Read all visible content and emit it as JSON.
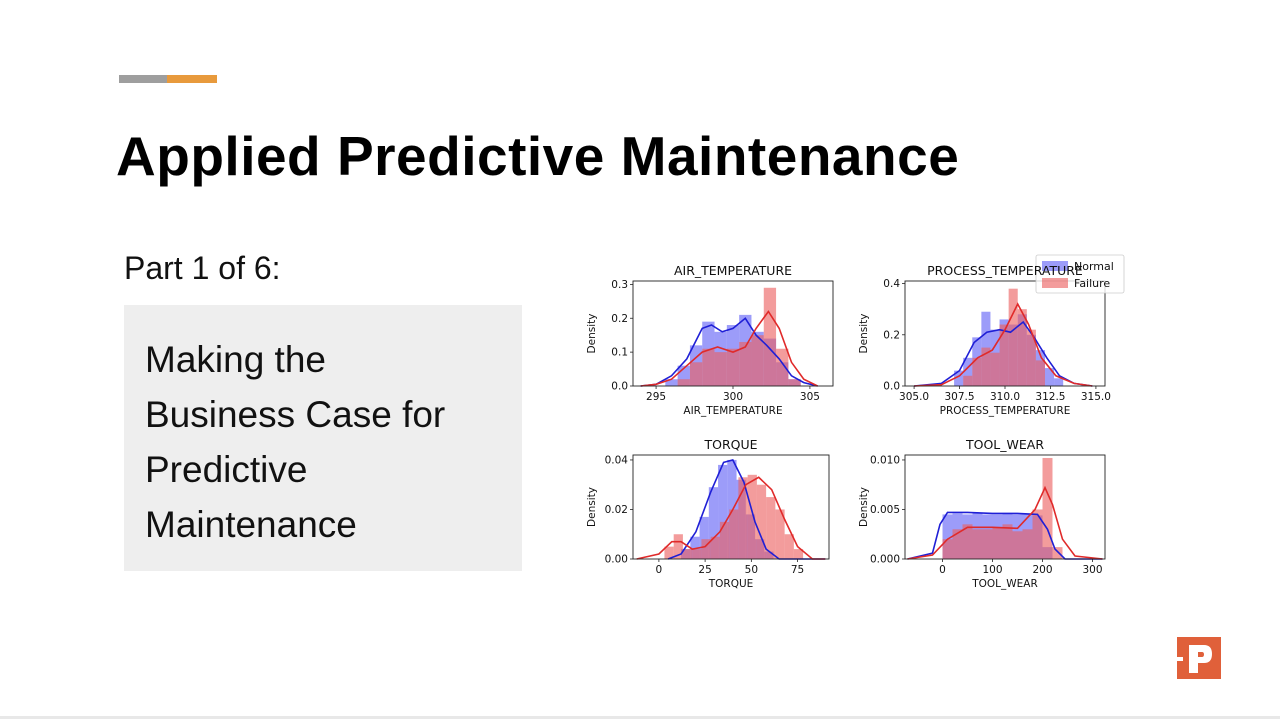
{
  "slide": {
    "title": "Applied Predictive Maintenance",
    "part_label": "Part 1 of 6:",
    "callout_lines": [
      "Making the",
      "Business Case for",
      "Predictive",
      "Maintenance"
    ],
    "accent_colors": [
      "#9e9e9e",
      "#e89a3c"
    ],
    "logo": {
      "icon": "presentation-p-logo-icon",
      "color": "#e0603a"
    }
  },
  "chart_data": [
    {
      "type": "histogram",
      "title": "AIR_TEMPERATURE",
      "xlabel": "AIR_TEMPERATURE",
      "ylabel": "Density",
      "xlim": [
        293.5,
        306.5
      ],
      "ylim": [
        0,
        0.31
      ],
      "xticks": [
        {
          "v": 295,
          "t": "295"
        },
        {
          "v": 300,
          "t": "300"
        },
        {
          "v": 305,
          "t": "305"
        }
      ],
      "yticks": [
        {
          "v": 0,
          "t": "0.0"
        },
        {
          "v": 0.1,
          "t": "0.1"
        },
        {
          "v": 0.2,
          "t": "0.2"
        },
        {
          "v": 0.3,
          "t": "0.3"
        }
      ],
      "series": [
        {
          "name": "Normal",
          "color": "#1f1fd6",
          "bins": [
            [
              295.6,
              296.4,
              0.02
            ],
            [
              296.4,
              297.2,
              0.06
            ],
            [
              297.2,
              298.0,
              0.12
            ],
            [
              298.0,
              298.8,
              0.19
            ],
            [
              298.8,
              299.6,
              0.16
            ],
            [
              299.6,
              300.4,
              0.18
            ],
            [
              300.4,
              301.2,
              0.21
            ],
            [
              301.2,
              302.0,
              0.16
            ],
            [
              302.0,
              302.8,
              0.14
            ],
            [
              302.8,
              303.6,
              0.07
            ],
            [
              303.6,
              304.4,
              0.02
            ]
          ],
          "kde": [
            [
              294,
              0
            ],
            [
              295,
              0.005
            ],
            [
              296,
              0.03
            ],
            [
              297,
              0.08
            ],
            [
              298,
              0.17
            ],
            [
              298.6,
              0.18
            ],
            [
              299.3,
              0.16
            ],
            [
              300,
              0.17
            ],
            [
              300.8,
              0.2
            ],
            [
              301.5,
              0.15
            ],
            [
              302.2,
              0.12
            ],
            [
              303,
              0.08
            ],
            [
              303.8,
              0.03
            ],
            [
              304.6,
              0.01
            ],
            [
              305.5,
              0
            ]
          ]
        },
        {
          "name": "Failure",
          "color": "#e02a2a",
          "bins": [
            [
              296.4,
              297.2,
              0.02
            ],
            [
              297.2,
              298.0,
              0.07
            ],
            [
              298.0,
              298.8,
              0.11
            ],
            [
              298.8,
              299.6,
              0.1
            ],
            [
              299.6,
              300.4,
              0.11
            ],
            [
              300.4,
              301.2,
              0.13
            ],
            [
              301.2,
              302.0,
              0.15
            ],
            [
              302.0,
              302.8,
              0.29
            ],
            [
              302.8,
              303.6,
              0.11
            ],
            [
              303.6,
              304.4,
              0.02
            ]
          ],
          "kde": [
            [
              294,
              0
            ],
            [
              295,
              0.005
            ],
            [
              296,
              0.02
            ],
            [
              297,
              0.06
            ],
            [
              298,
              0.1
            ],
            [
              299,
              0.115
            ],
            [
              300,
              0.1
            ],
            [
              300.8,
              0.115
            ],
            [
              301.5,
              0.17
            ],
            [
              302.3,
              0.22
            ],
            [
              303,
              0.17
            ],
            [
              303.8,
              0.07
            ],
            [
              304.6,
              0.02
            ],
            [
              305.5,
              0
            ]
          ]
        }
      ]
    },
    {
      "type": "histogram",
      "title": "PROCESS_TEMPERATURE",
      "xlabel": "PROCESS_TEMPERATURE",
      "ylabel": "Density",
      "xlim": [
        304.5,
        315.5
      ],
      "ylim": [
        0,
        0.41
      ],
      "xticks": [
        {
          "v": 305,
          "t": "305.0"
        },
        {
          "v": 307.5,
          "t": "307.5"
        },
        {
          "v": 310,
          "t": "310.0"
        },
        {
          "v": 312.5,
          "t": "312.5"
        },
        {
          "v": 315,
          "t": "315.0"
        }
      ],
      "yticks": [
        {
          "v": 0,
          "t": "0.0"
        },
        {
          "v": 0.2,
          "t": "0.2"
        },
        {
          "v": 0.4,
          "t": "0.4"
        }
      ],
      "legend": {
        "placement": "top-right",
        "entries": [
          "Normal",
          "Failure"
        ]
      },
      "series": [
        {
          "name": "Normal",
          "color": "#1f1fd6",
          "bins": [
            [
              307.2,
              307.7,
              0.06
            ],
            [
              307.7,
              308.2,
              0.11
            ],
            [
              308.2,
              308.7,
              0.19
            ],
            [
              308.7,
              309.2,
              0.29
            ],
            [
              309.2,
              309.7,
              0.22
            ],
            [
              309.7,
              310.2,
              0.26
            ],
            [
              310.2,
              310.7,
              0.24
            ],
            [
              310.7,
              311.2,
              0.28
            ],
            [
              311.2,
              311.7,
              0.2
            ],
            [
              311.7,
              312.2,
              0.14
            ],
            [
              312.2,
              312.7,
              0.07
            ],
            [
              312.7,
              313.2,
              0.03
            ]
          ],
          "kde": [
            [
              305,
              0
            ],
            [
              306.5,
              0.01
            ],
            [
              307.5,
              0.06
            ],
            [
              308.3,
              0.17
            ],
            [
              309,
              0.21
            ],
            [
              309.7,
              0.22
            ],
            [
              310.3,
              0.21
            ],
            [
              311,
              0.25
            ],
            [
              311.6,
              0.19
            ],
            [
              312.3,
              0.11
            ],
            [
              313,
              0.04
            ],
            [
              313.8,
              0.01
            ],
            [
              314.8,
              0
            ]
          ]
        },
        {
          "name": "Failure",
          "color": "#e02a2a",
          "bins": [
            [
              307.7,
              308.2,
              0.04
            ],
            [
              308.2,
              308.7,
              0.11
            ],
            [
              308.7,
              309.2,
              0.15
            ],
            [
              309.2,
              309.7,
              0.13
            ],
            [
              309.7,
              310.2,
              0.24
            ],
            [
              310.2,
              310.7,
              0.38
            ],
            [
              310.7,
              311.2,
              0.3
            ],
            [
              311.2,
              311.7,
              0.22
            ],
            [
              311.7,
              312.2,
              0.1
            ]
          ],
          "kde": [
            [
              305,
              0
            ],
            [
              306.5,
              0.005
            ],
            [
              307.5,
              0.04
            ],
            [
              308.5,
              0.11
            ],
            [
              309.3,
              0.14
            ],
            [
              310,
              0.22
            ],
            [
              310.7,
              0.32
            ],
            [
              311.3,
              0.24
            ],
            [
              312,
              0.11
            ],
            [
              312.8,
              0.04
            ],
            [
              313.8,
              0.01
            ],
            [
              314.8,
              0
            ]
          ]
        }
      ]
    },
    {
      "type": "histogram",
      "title": "TORQUE",
      "xlabel": "TORQUE",
      "ylabel": "Density",
      "xlim": [
        -14,
        92
      ],
      "ylim": [
        0,
        0.042
      ],
      "xticks": [
        {
          "v": 0,
          "t": "0"
        },
        {
          "v": 25,
          "t": "25"
        },
        {
          "v": 50,
          "t": "50"
        },
        {
          "v": 75,
          "t": "75"
        }
      ],
      "yticks": [
        {
          "v": 0,
          "t": "0.00"
        },
        {
          "v": 0.02,
          "t": "0.02"
        },
        {
          "v": 0.04,
          "t": "0.04"
        }
      ],
      "series": [
        {
          "name": "Normal",
          "color": "#1f1fd6",
          "bins": [
            [
              12,
              17,
              0.004
            ],
            [
              17,
              22,
              0.009
            ],
            [
              22,
              27,
              0.017
            ],
            [
              27,
              32,
              0.029
            ],
            [
              32,
              37,
              0.038
            ],
            [
              37,
              42,
              0.04
            ],
            [
              42,
              47,
              0.032
            ],
            [
              47,
              52,
              0.018
            ],
            [
              52,
              57,
              0.008
            ],
            [
              57,
              62,
              0.003
            ]
          ],
          "kde": [
            [
              5,
              0
            ],
            [
              12,
              0.002
            ],
            [
              20,
              0.011
            ],
            [
              28,
              0.027
            ],
            [
              35,
              0.039
            ],
            [
              40,
              0.04
            ],
            [
              46,
              0.031
            ],
            [
              52,
              0.015
            ],
            [
              58,
              0.004
            ],
            [
              65,
              0
            ],
            [
              90,
              0
            ]
          ]
        },
        {
          "name": "Failure",
          "color": "#e02a2a",
          "bins": [
            [
              3,
              8,
              0.005
            ],
            [
              8,
              13,
              0.01
            ],
            [
              13,
              18,
              0.004
            ],
            [
              18,
              23,
              0.004
            ],
            [
              23,
              28,
              0.008
            ],
            [
              28,
              33,
              0.009
            ],
            [
              33,
              38,
              0.015
            ],
            [
              38,
              43,
              0.02
            ],
            [
              43,
              48,
              0.033
            ],
            [
              48,
              53,
              0.034
            ],
            [
              53,
              58,
              0.03
            ],
            [
              58,
              63,
              0.025
            ],
            [
              63,
              68,
              0.02
            ],
            [
              68,
              73,
              0.01
            ],
            [
              73,
              78,
              0.004
            ]
          ],
          "kde": [
            [
              -12,
              0
            ],
            [
              0,
              0.002
            ],
            [
              7,
              0.007
            ],
            [
              12,
              0.007
            ],
            [
              18,
              0.004
            ],
            [
              25,
              0.005
            ],
            [
              33,
              0.011
            ],
            [
              40,
              0.02
            ],
            [
              47,
              0.03
            ],
            [
              54,
              0.033
            ],
            [
              61,
              0.028
            ],
            [
              68,
              0.016
            ],
            [
              75,
              0.005
            ],
            [
              83,
              0
            ],
            [
              90,
              0
            ]
          ]
        }
      ]
    },
    {
      "type": "histogram",
      "title": "TOOL_WEAR",
      "xlabel": "TOOL_WEAR",
      "ylabel": "Density",
      "xlim": [
        -75,
        325
      ],
      "ylim": [
        0,
        0.0105
      ],
      "xticks": [
        {
          "v": 0,
          "t": "0"
        },
        {
          "v": 100,
          "t": "100"
        },
        {
          "v": 200,
          "t": "200"
        },
        {
          "v": 300,
          "t": "300"
        }
      ],
      "yticks": [
        {
          "v": 0,
          "t": "0.000"
        },
        {
          "v": 0.005,
          "t": "0.005"
        },
        {
          "v": 0.01,
          "t": "0.010"
        }
      ],
      "series": [
        {
          "name": "Normal",
          "color": "#1f1fd6",
          "bins": [
            [
              0,
              20,
              0.0045
            ],
            [
              20,
              40,
              0.0046
            ],
            [
              40,
              60,
              0.0045
            ],
            [
              60,
              80,
              0.0046
            ],
            [
              80,
              100,
              0.0045
            ],
            [
              100,
              120,
              0.0045
            ],
            [
              120,
              140,
              0.0046
            ],
            [
              140,
              160,
              0.0045
            ],
            [
              160,
              180,
              0.0045
            ],
            [
              180,
              200,
              0.0044
            ],
            [
              200,
              220,
              0.0012
            ]
          ],
          "kde": [
            [
              -70,
              0
            ],
            [
              -20,
              0.0006
            ],
            [
              -5,
              0.0035
            ],
            [
              10,
              0.0047
            ],
            [
              50,
              0.0047
            ],
            [
              100,
              0.0046
            ],
            [
              150,
              0.0046
            ],
            [
              190,
              0.0045
            ],
            [
              210,
              0.003
            ],
            [
              225,
              0.001
            ],
            [
              245,
              0
            ],
            [
              320,
              0
            ]
          ]
        },
        {
          "name": "Failure",
          "color": "#e02a2a",
          "bins": [
            [
              0,
              20,
              0.002
            ],
            [
              20,
              40,
              0.003
            ],
            [
              40,
              60,
              0.0035
            ],
            [
              60,
              80,
              0.003
            ],
            [
              80,
              100,
              0.003
            ],
            [
              100,
              120,
              0.0032
            ],
            [
              120,
              140,
              0.0035
            ],
            [
              140,
              160,
              0.0028
            ],
            [
              160,
              180,
              0.003
            ],
            [
              180,
              200,
              0.005
            ],
            [
              200,
              220,
              0.0102
            ],
            [
              220,
              240,
              0.0012
            ]
          ],
          "kde": [
            [
              -70,
              0
            ],
            [
              -20,
              0.0004
            ],
            [
              10,
              0.002
            ],
            [
              50,
              0.0032
            ],
            [
              100,
              0.0032
            ],
            [
              150,
              0.0031
            ],
            [
              185,
              0.005
            ],
            [
              205,
              0.0072
            ],
            [
              220,
              0.0055
            ],
            [
              240,
              0.002
            ],
            [
              265,
              0.0003
            ],
            [
              320,
              0
            ]
          ]
        }
      ]
    }
  ]
}
